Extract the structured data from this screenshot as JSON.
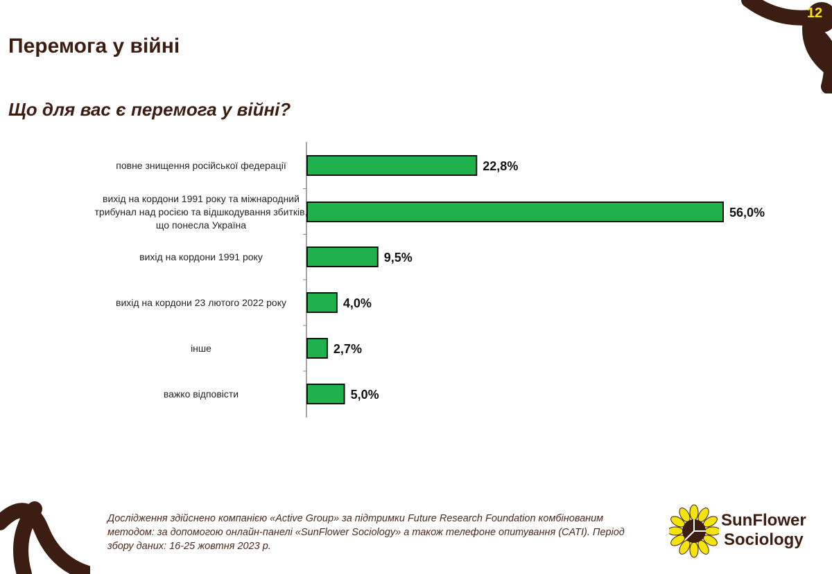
{
  "slide": {
    "title": "Перемога у війні",
    "question": "Що для вас є перемога у війні?",
    "page_number": "12"
  },
  "chart_data": {
    "type": "bar",
    "orientation": "horizontal",
    "categories": [
      "повне знищення російської федерації",
      "вихід на кордони 1991 року  та міжнародний трибунал над росією та відшкодування збитків, що понесла Україна",
      "вихід на кордони 1991 року",
      "вихід на кордони 23 лютого 2022 року",
      "інше",
      "важко відповісти"
    ],
    "values": [
      22.8,
      56.0,
      9.5,
      4.0,
      2.7,
      5.0
    ],
    "value_labels": [
      "22,8%",
      "56,0%",
      "9,5%",
      "4,0%",
      "2,7%",
      "5,0%"
    ],
    "unit": "%",
    "xlim": [
      0,
      56
    ],
    "grid": false,
    "legend": "none",
    "bar_color": "#1fb14c"
  },
  "footer": {
    "source_lines": [
      "Дослідження здійснено компанією «Active Group» за підтримки Future Research Foundation комбінованим",
      "методом: за допомогою онлайн-панелі «SunFlower Sociology» а також телефоне опитування (CATI). Період",
      "збору даних: 16-25 жовтня 2023 р."
    ]
  },
  "logo": {
    "line1": "SunFlower",
    "line2": "Sociology"
  },
  "colors": {
    "brown": "#3b1d12",
    "flower_yellow": "#f4e40a",
    "green": "#1fb14c"
  }
}
